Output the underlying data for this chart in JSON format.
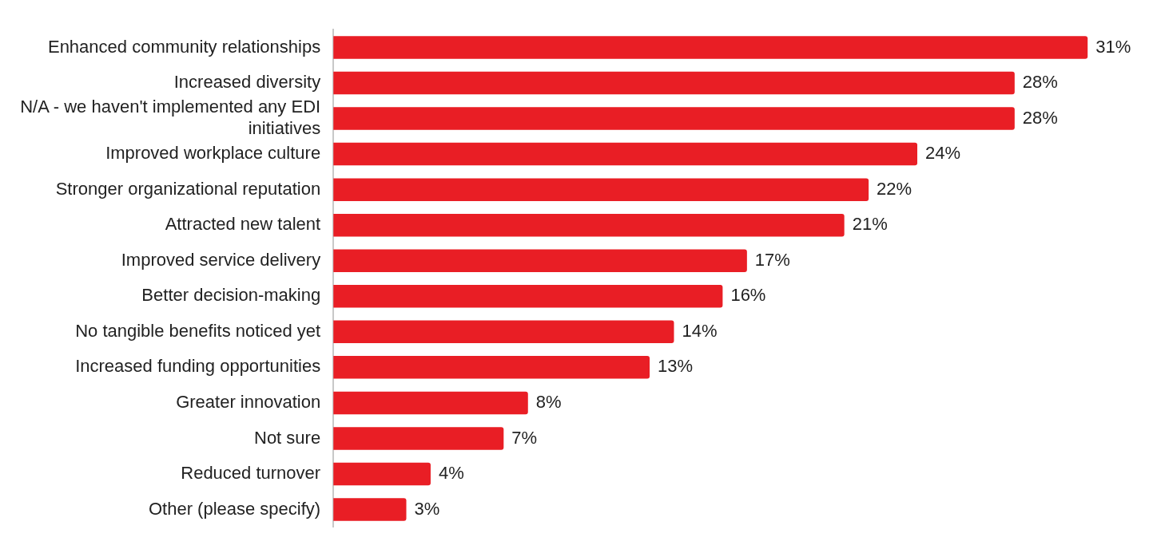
{
  "chart_data": {
    "type": "bar",
    "orientation": "horizontal",
    "categories": [
      "Enhanced community relationships",
      "Increased diversity",
      "N/A - we haven't implemented any EDI initiatives",
      "Improved workplace culture",
      "Stronger organizational reputation",
      "Attracted new talent",
      "Improved service delivery",
      "Better decision-making",
      "No tangible benefits noticed yet",
      "Increased funding opportunities",
      "Greater innovation",
      "Not sure",
      "Reduced turnover",
      "Other (please specify)"
    ],
    "values": [
      31,
      28,
      28,
      24,
      22,
      21,
      17,
      16,
      14,
      13,
      8,
      7,
      4,
      3
    ],
    "value_labels": [
      "31%",
      "28%",
      "28%",
      "24%",
      "22%",
      "21%",
      "17%",
      "16%",
      "14%",
      "13%",
      "8%",
      "7%",
      "4%",
      "3%"
    ],
    "color": "#e91e25"
  }
}
